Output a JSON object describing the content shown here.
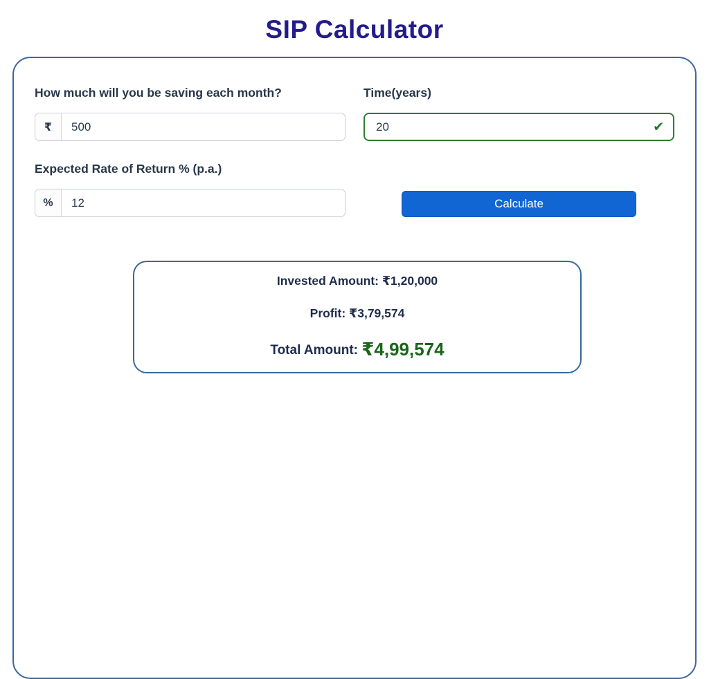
{
  "title": "SIP Calculator",
  "form": {
    "monthly": {
      "label": "How much will you be saving each month?",
      "prefix": "₹",
      "value": "500"
    },
    "time": {
      "label": "Time(years)",
      "value": "20"
    },
    "rate": {
      "label": "Expected Rate of Return % (p.a.)",
      "prefix": "%",
      "value": "12"
    },
    "calculate_label": "Calculate"
  },
  "results": {
    "invested_label": "Invested Amount:",
    "invested_value": "₹1,20,000",
    "profit_label": "Profit:",
    "profit_value": "₹3,79,574",
    "total_label": "Total Amount:",
    "total_value": "₹4,99,574"
  },
  "icons": {
    "check": "✔"
  },
  "colors": {
    "title": "#241b8d",
    "accent_blue": "#1266d4",
    "border_blue": "#3a679c",
    "valid_green": "#2e7d32",
    "total_green": "#1a661a"
  }
}
